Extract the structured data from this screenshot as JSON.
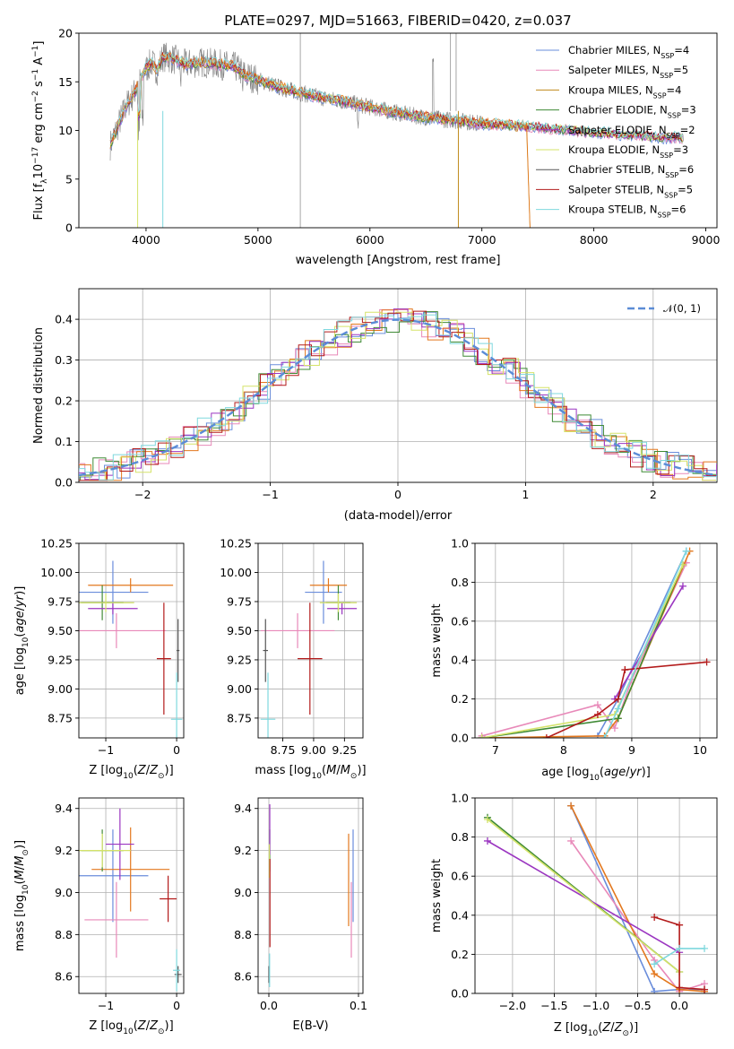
{
  "figure": {
    "title": "PLATE=0297, MJD=51663, FIBERID=0420, z=0.037"
  },
  "colors": {
    "chabrier_miles": "#6a8ddb",
    "salpeter_miles": "#e889b9",
    "kroupa_miles": "#c08a1c",
    "chabrier_elodie": "#3f8a35",
    "salpeter_elodie": "#9b36c1",
    "kroupa_elodie": "#d5e36a",
    "chabrier_stelib": "#555555",
    "salpeter_stelib": "#b31b1b",
    "kroupa_stelib": "#7fd8de",
    "orange_fit": "#e3781e",
    "data_gray": "#808080",
    "normal_curve": "#5b8cd6",
    "grid": "#b0b0b0"
  },
  "legend": {
    "entries": [
      {
        "label": "Chabrier MILES, N",
        "sub": "SSP",
        "val": "=4",
        "color_key": "chabrier_miles"
      },
      {
        "label": "Salpeter MILES, N",
        "sub": "SSP",
        "val": "=5",
        "color_key": "salpeter_miles"
      },
      {
        "label": "Kroupa MILES, N",
        "sub": "SSP",
        "val": "=4",
        "color_key": "kroupa_miles"
      },
      {
        "label": "Chabrier ELODIE, N",
        "sub": "SSP",
        "val": "=3",
        "color_key": "chabrier_elodie"
      },
      {
        "label": "Salpeter ELODIE, N",
        "sub": "SSP",
        "val": "=2",
        "color_key": "salpeter_elodie"
      },
      {
        "label": "Kroupa ELODIE, N",
        "sub": "SSP",
        "val": "=3",
        "color_key": "kroupa_elodie"
      },
      {
        "label": "Chabrier STELIB, N",
        "sub": "SSP",
        "val": "=6",
        "color_key": "chabrier_stelib"
      },
      {
        "label": "Salpeter STELIB, N",
        "sub": "SSP",
        "val": "=5",
        "color_key": "salpeter_stelib"
      },
      {
        "label": "Kroupa STELIB, N",
        "sub": "SSP",
        "val": "=6",
        "color_key": "kroupa_stelib"
      }
    ],
    "normal_label": "𝒩(0, 1)"
  },
  "chart_data": [
    {
      "id": "spectrum",
      "type": "line",
      "xlabel": "wavelength [Angstrom, rest frame]",
      "ylabel": "Flux [f",
      "ylabel_parts": [
        "Flux [f",
        "λ",
        "10",
        "−17",
        " erg cm",
        "−2",
        " s",
        "−1",
        " A",
        "−1",
        "]"
      ],
      "xlim": [
        3400,
        9100
      ],
      "ylim": [
        0,
        20
      ],
      "xticks": [
        4000,
        5000,
        6000,
        7000,
        8000,
        9000
      ],
      "yticks": [
        0,
        5,
        10,
        15,
        20
      ],
      "grid": false,
      "legend_position": "top-right",
      "spectrum_points": [
        [
          3680,
          8.5
        ],
        [
          3750,
          10.5
        ],
        [
          3820,
          12.5
        ],
        [
          3880,
          13.5
        ],
        [
          3930,
          14.8
        ],
        [
          3980,
          16.0
        ],
        [
          4050,
          17.0
        ],
        [
          4100,
          16.2
        ],
        [
          4150,
          17.6
        ],
        [
          4250,
          17.3
        ],
        [
          4350,
          16.8
        ],
        [
          4500,
          17.0
        ],
        [
          4650,
          16.8
        ],
        [
          4800,
          16.5
        ],
        [
          4900,
          15.6
        ],
        [
          5050,
          15.0
        ],
        [
          5200,
          14.4
        ],
        [
          5400,
          13.8
        ],
        [
          5600,
          13.3
        ],
        [
          5800,
          12.9
        ],
        [
          6000,
          12.4
        ],
        [
          6200,
          11.9
        ],
        [
          6400,
          11.5
        ],
        [
          6600,
          11.2
        ],
        [
          6800,
          11.0
        ],
        [
          7000,
          10.7
        ],
        [
          7200,
          10.6
        ],
        [
          7400,
          10.4
        ],
        [
          7600,
          10.2
        ],
        [
          7800,
          10.0
        ],
        [
          8000,
          9.8
        ],
        [
          8200,
          9.6
        ],
        [
          8400,
          9.5
        ],
        [
          8600,
          9.3
        ],
        [
          8800,
          9.2
        ]
      ]
    },
    {
      "id": "residuals",
      "type": "line",
      "xlabel": "(data-model)/error",
      "ylabel": "Normed distribution",
      "xlim": [
        -2.5,
        2.5
      ],
      "ylim": [
        0,
        0.475
      ],
      "xticks": [
        -2,
        -1,
        0,
        1,
        2
      ],
      "xtick_labels": [
        "−2",
        "−1",
        "0",
        "1",
        "2"
      ],
      "yticks": [
        0.0,
        0.1,
        0.2,
        0.3,
        0.4
      ],
      "ytick_labels": [
        "0.0",
        "0.1",
        "0.2",
        "0.3",
        "0.4"
      ],
      "grid": true,
      "legend_position": "top-right",
      "series": [
        {
          "name": "𝒩(0, 1)",
          "curve": "standard normal"
        }
      ]
    },
    {
      "id": "age_vs_Z",
      "type": "scatter",
      "xlabel": "Z [log10(Z/Z⊙)]",
      "ylabel": "age  [log10(age/yr)]",
      "xlim": [
        -1.38,
        0.1
      ],
      "ylim": [
        8.58,
        10.25
      ],
      "xticks": [
        -1,
        0
      ],
      "xtick_labels": [
        "−1",
        "0"
      ],
      "yticks": [
        8.75,
        9.0,
        9.25,
        9.5,
        9.75,
        10.0,
        10.25
      ],
      "ytick_labels": [
        "8.75",
        "9.00",
        "9.25",
        "9.50",
        "9.75",
        "10.00",
        "10.25"
      ],
      "grid": true,
      "points": [
        {
          "x": -0.9,
          "y": 9.83,
          "xerr": 0.5,
          "yerr": 0.27,
          "color_key": "chabrier_miles"
        },
        {
          "x": -0.85,
          "y": 9.5,
          "xerr": 0.7,
          "yerr": 0.15,
          "color_key": "salpeter_miles"
        },
        {
          "x": -0.65,
          "y": 9.89,
          "xerr": 0.6,
          "yerr": 0.06,
          "color_key": "orange_fit"
        },
        {
          "x": -1.05,
          "y": 9.74,
          "xerr": 0.3,
          "yerr": 0.15,
          "color_key": "chabrier_elodie"
        },
        {
          "x": -0.9,
          "y": 9.69,
          "xerr": 0.35,
          "yerr": 0.05,
          "color_key": "salpeter_elodie"
        },
        {
          "x": -1.0,
          "y": 9.74,
          "xerr": 0.4,
          "yerr": 0.08,
          "color_key": "kroupa_elodie"
        },
        {
          "x": 0.02,
          "y": 9.33,
          "xerr": 0.02,
          "yerr": 0.27,
          "color_key": "chabrier_stelib"
        },
        {
          "x": -0.18,
          "y": 9.26,
          "xerr": 0.1,
          "yerr": 0.48,
          "color_key": "salpeter_stelib"
        },
        {
          "x": 0.0,
          "y": 8.74,
          "xerr": 0.08,
          "yerr": 0.4,
          "color_key": "kroupa_stelib"
        }
      ]
    },
    {
      "id": "age_vs_mass",
      "type": "scatter",
      "xlabel": "mass [log10(M/M⊙)]",
      "ylabel": "",
      "xlim": [
        8.55,
        9.4
      ],
      "ylim": [
        8.58,
        10.25
      ],
      "xticks": [
        8.75,
        9.0,
        9.25
      ],
      "xtick_labels": [
        "8.75",
        "9.00",
        "9.25"
      ],
      "yticks": [
        8.75,
        9.0,
        9.25,
        9.5,
        9.75,
        10.0,
        10.25
      ],
      "ytick_labels": [
        "8.75",
        "9.00",
        "9.25",
        "9.50",
        "9.75",
        "10.00",
        "10.25"
      ],
      "grid": true,
      "points": [
        {
          "x": 9.08,
          "y": 9.83,
          "xerr": 0.15,
          "yerr": 0.27,
          "color_key": "chabrier_miles"
        },
        {
          "x": 8.87,
          "y": 9.5,
          "xerr": 0.3,
          "yerr": 0.15,
          "color_key": "salpeter_miles"
        },
        {
          "x": 9.12,
          "y": 9.89,
          "xerr": 0.15,
          "yerr": 0.06,
          "color_key": "orange_fit"
        },
        {
          "x": 9.2,
          "y": 9.74,
          "xerr": 0.1,
          "yerr": 0.15,
          "color_key": "chabrier_elodie"
        },
        {
          "x": 9.23,
          "y": 9.69,
          "xerr": 0.12,
          "yerr": 0.05,
          "color_key": "salpeter_elodie"
        },
        {
          "x": 9.2,
          "y": 9.74,
          "xerr": 0.15,
          "yerr": 0.08,
          "color_key": "kroupa_elodie"
        },
        {
          "x": 8.61,
          "y": 9.33,
          "xerr": 0.02,
          "yerr": 0.27,
          "color_key": "chabrier_stelib"
        },
        {
          "x": 8.97,
          "y": 9.26,
          "xerr": 0.1,
          "yerr": 0.48,
          "color_key": "salpeter_stelib"
        },
        {
          "x": 8.63,
          "y": 8.74,
          "xerr": 0.06,
          "yerr": 0.4,
          "color_key": "kroupa_stelib"
        }
      ]
    },
    {
      "id": "mass_weight_vs_age",
      "type": "line",
      "xlabel": "age  [log10(age/yr)]",
      "ylabel": "mass weight",
      "xlim": [
        6.7,
        10.25
      ],
      "ylim": [
        0,
        1
      ],
      "xticks": [
        7,
        8,
        9,
        10
      ],
      "yticks": [
        0.0,
        0.2,
        0.4,
        0.6,
        0.8,
        1.0
      ],
      "ytick_labels": [
        "0.0",
        "0.2",
        "0.4",
        "0.6",
        "0.8",
        "1.0"
      ],
      "grid": true,
      "series": [
        {
          "color_key": "chabrier_miles",
          "x": [
            8.5,
            8.8,
            9.8
          ],
          "y": [
            0.01,
            0.2,
            0.96
          ]
        },
        {
          "color_key": "salpeter_miles",
          "x": [
            6.8,
            8.5,
            8.75,
            9.0,
            9.8
          ],
          "y": [
            0.01,
            0.17,
            0.05,
            0.3,
            0.9
          ]
        },
        {
          "color_key": "orange_fit",
          "x": [
            6.8,
            8.6,
            8.8,
            9.85
          ],
          "y": [
            0.0,
            0.01,
            0.1,
            0.96
          ]
        },
        {
          "color_key": "chabrier_elodie",
          "x": [
            6.8,
            8.8,
            9.75
          ],
          "y": [
            0.0,
            0.1,
            0.89
          ]
        },
        {
          "color_key": "salpeter_elodie",
          "x": [
            8.75,
            9.75
          ],
          "y": [
            0.2,
            0.78
          ]
        },
        {
          "color_key": "kroupa_elodie",
          "x": [
            6.8,
            8.75,
            9.75
          ],
          "y": [
            0.0,
            0.12,
            0.89
          ]
        },
        {
          "color_key": "salpeter_stelib",
          "x": [
            7.75,
            8.5,
            8.8,
            8.9,
            10.1
          ],
          "y": [
            0.0,
            0.12,
            0.2,
            0.35,
            0.39
          ]
        },
        {
          "color_key": "kroupa_stelib",
          "x": [
            8.6,
            8.8,
            9.8
          ],
          "y": [
            0.0,
            0.15,
            0.96
          ]
        }
      ]
    },
    {
      "id": "mass_vs_Z",
      "type": "scatter",
      "xlabel": "Z [log10(Z/Z⊙)]",
      "ylabel": "mass [log10(M/M⊙)]",
      "xlim": [
        -1.38,
        0.1
      ],
      "ylim": [
        8.52,
        9.45
      ],
      "xticks": [
        -1,
        0
      ],
      "xtick_labels": [
        "−1",
        "0"
      ],
      "yticks": [
        8.6,
        8.8,
        9.0,
        9.2,
        9.4
      ],
      "ytick_labels": [
        "8.6",
        "8.8",
        "9.0",
        "9.2",
        "9.4"
      ],
      "grid": true,
      "points": [
        {
          "x": -0.9,
          "y": 9.08,
          "xerr": 0.5,
          "yerr": 0.22,
          "color_key": "chabrier_miles"
        },
        {
          "x": -0.85,
          "y": 8.87,
          "xerr": 0.45,
          "yerr": 0.18,
          "color_key": "salpeter_miles"
        },
        {
          "x": -0.65,
          "y": 9.11,
          "xerr": 0.55,
          "yerr": 0.2,
          "color_key": "orange_fit"
        },
        {
          "x": -1.05,
          "y": 9.2,
          "xerr": 0.3,
          "yerr": 0.1,
          "color_key": "chabrier_elodie"
        },
        {
          "x": -0.8,
          "y": 9.23,
          "xerr": 0.2,
          "yerr": 0.17,
          "color_key": "salpeter_elodie"
        },
        {
          "x": -1.05,
          "y": 9.2,
          "xerr": 0.4,
          "yerr": 0.08,
          "color_key": "kroupa_elodie"
        },
        {
          "x": 0.02,
          "y": 8.61,
          "xerr": 0.05,
          "yerr": 0.04,
          "color_key": "chabrier_stelib"
        },
        {
          "x": -0.12,
          "y": 8.97,
          "xerr": 0.12,
          "yerr": 0.11,
          "color_key": "salpeter_stelib"
        },
        {
          "x": 0.0,
          "y": 8.63,
          "xerr": 0.05,
          "yerr": 0.1,
          "color_key": "kroupa_stelib"
        }
      ]
    },
    {
      "id": "mass_vs_ebv",
      "type": "scatter",
      "xlabel": "E(B-V)",
      "ylabel": "",
      "xlim": [
        -0.012,
        0.105
      ],
      "ylim": [
        8.52,
        9.45
      ],
      "xticks": [
        0.0,
        0.1
      ],
      "xtick_labels": [
        "0.0",
        "0.1"
      ],
      "yticks": [
        8.6,
        8.8,
        9.0,
        9.2,
        9.4
      ],
      "ytick_labels": [
        "8.6",
        "8.8",
        "9.0",
        "9.2",
        "9.4"
      ],
      "grid": true,
      "points": [
        {
          "x": 0.094,
          "y": 9.08,
          "yerr": 0.22,
          "color_key": "chabrier_miles"
        },
        {
          "x": 0.092,
          "y": 8.87,
          "yerr": 0.18,
          "color_key": "salpeter_miles"
        },
        {
          "x": 0.089,
          "y": 9.06,
          "yerr": 0.22,
          "color_key": "orange_fit"
        },
        {
          "x": 0.001,
          "y": 9.2,
          "yerr": 0.1,
          "color_key": "chabrier_elodie"
        },
        {
          "x": 0.001,
          "y": 9.3,
          "yerr": 0.12,
          "color_key": "salpeter_elodie"
        },
        {
          "x": 0.0005,
          "y": 9.15,
          "yerr": 0.08,
          "color_key": "kroupa_elodie"
        },
        {
          "x": 0.0,
          "y": 8.61,
          "yerr": 0.04,
          "color_key": "chabrier_stelib"
        },
        {
          "x": 0.0012,
          "y": 8.95,
          "yerr": 0.21,
          "color_key": "salpeter_stelib"
        },
        {
          "x": 0.0008,
          "y": 8.63,
          "yerr": 0.08,
          "color_key": "kroupa_stelib"
        }
      ]
    },
    {
      "id": "mass_weight_vs_Z",
      "type": "line",
      "xlabel": "Z [log10(Z/Z⊙)]",
      "ylabel": "mass weight",
      "xlim": [
        -2.45,
        0.45
      ],
      "ylim": [
        0,
        1
      ],
      "xticks": [
        -2.0,
        -1.5,
        -1.0,
        -0.5,
        0.0
      ],
      "xtick_labels": [
        "−2.0",
        "−1.5",
        "−1.0",
        "−0.5",
        "0.0"
      ],
      "yticks": [
        0.0,
        0.2,
        0.4,
        0.6,
        0.8,
        1.0
      ],
      "ytick_labels": [
        "0.0",
        "0.2",
        "0.4",
        "0.6",
        "0.8",
        "1.0"
      ],
      "grid": true,
      "series": [
        {
          "color_key": "chabrier_miles",
          "x": [
            -1.3,
            -0.3,
            0.0,
            0.3
          ],
          "y": [
            0.96,
            0.01,
            0.02,
            0.02
          ]
        },
        {
          "color_key": "salpeter_miles",
          "x": [
            -1.3,
            -0.3,
            0.0,
            0.3
          ],
          "y": [
            0.78,
            0.17,
            0.01,
            0.05
          ]
        },
        {
          "color_key": "orange_fit",
          "x": [
            -1.3,
            -0.3,
            0.0,
            0.3
          ],
          "y": [
            0.96,
            0.1,
            0.02,
            0.01
          ]
        },
        {
          "color_key": "chabrier_elodie",
          "x": [
            -2.3,
            0.0
          ],
          "y": [
            0.9,
            0.11
          ]
        },
        {
          "color_key": "salpeter_elodie",
          "x": [
            -2.3,
            0.0
          ],
          "y": [
            0.78,
            0.21
          ]
        },
        {
          "color_key": "kroupa_elodie",
          "x": [
            -2.3,
            0.0
          ],
          "y": [
            0.89,
            0.11
          ]
        },
        {
          "color_key": "salpeter_stelib",
          "x": [
            -0.3,
            0.0,
            0.0,
            0.3
          ],
          "y": [
            0.39,
            0.35,
            0.03,
            0.02
          ]
        },
        {
          "color_key": "kroupa_stelib",
          "x": [
            -0.3,
            0.0,
            0.3
          ],
          "y": [
            0.15,
            0.23,
            0.23
          ]
        }
      ]
    }
  ]
}
